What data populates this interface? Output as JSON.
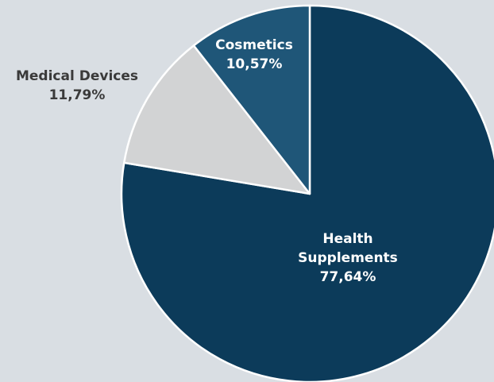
{
  "chart_data": {
    "type": "pie",
    "start_angle_deg": 0,
    "direction": "clockwise",
    "slices": [
      {
        "name": "Health Supplements",
        "label_lines": [
          "Health",
          "Supplements",
          "77,64%"
        ],
        "value": 77.64,
        "color": "#0c3b5a",
        "label_color": "#ffffff"
      },
      {
        "name": "Medical Devices",
        "label_lines": [
          "Medical Devices",
          "11,79%"
        ],
        "value": 11.79,
        "color": "#d2d3d4",
        "label_color": "#3a3a3a"
      },
      {
        "name": "Cosmetics",
        "label_lines": [
          "Cosmetics",
          "10,57%"
        ],
        "value": 10.57,
        "color": "#1f5678",
        "label_color": "#ffffff"
      }
    ],
    "slice_border_color": "#ffffff",
    "legend": "none"
  }
}
